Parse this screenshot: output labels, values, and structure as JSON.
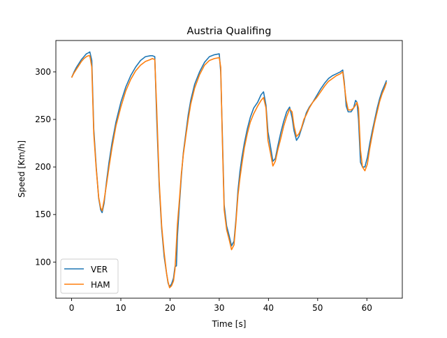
{
  "chart_data": {
    "type": "line",
    "title": "Austria Qualifing",
    "xlabel": "Time [s]",
    "ylabel": "Speed [Km/h]",
    "xlim": [
      -3.2,
      67.2
    ],
    "ylim": [
      62,
      333
    ],
    "xticks": [
      0,
      10,
      20,
      30,
      40,
      50,
      60
    ],
    "yticks": [
      100,
      150,
      200,
      250,
      300
    ],
    "legend_position": "lower-left",
    "series": [
      {
        "name": "VER",
        "color": "#1f77b4",
        "x": [
          0,
          0.5,
          1,
          1.5,
          2,
          2.5,
          3,
          3.4,
          3.7,
          4.1,
          4.5,
          5,
          5.5,
          5.9,
          6.2,
          6.6,
          7.1,
          7.6,
          8.2,
          9,
          10,
          11,
          12,
          13,
          14,
          15,
          16,
          16.4,
          16.9,
          17.3,
          17.8,
          18.3,
          18.8,
          19.3,
          19.6,
          19.9,
          20.3,
          20.7,
          21,
          21.3,
          21.5,
          21.9,
          22.3,
          22.7,
          23.2,
          23.7,
          24.2,
          25,
          26,
          27,
          28,
          29,
          30,
          30.3,
          30.6,
          31,
          31.5,
          32,
          32.5,
          33,
          33.4,
          33.8,
          34.2,
          34.6,
          35.1,
          35.7,
          36.3,
          37,
          37.8,
          38.5,
          39,
          39.5,
          39.9,
          40.4,
          40.9,
          41.4,
          41.9,
          42.5,
          43.1,
          43.7,
          44.3,
          44.8,
          45.2,
          45.7,
          46.2,
          46.7,
          47.2,
          47.7,
          48.3,
          49,
          49.8,
          50.6,
          51.4,
          52.2,
          53,
          53.8,
          54.6,
          55.1,
          55.4,
          55.8,
          56.2,
          56.8,
          57.3,
          57.7,
          58,
          58.3,
          58.7,
          59.1,
          59.6,
          60.1,
          60.6,
          61.1,
          61.6,
          62.1,
          62.6,
          63.1,
          63.6,
          64
        ],
        "y": [
          294,
          300,
          305,
          309,
          313,
          316,
          319,
          320,
          321,
          312,
          240,
          200,
          167,
          155,
          152,
          162,
          185,
          205,
          225,
          247,
          268,
          284,
          296,
          305,
          312,
          316,
          317,
          317,
          316,
          250,
          180,
          135,
          106,
          88,
          78,
          74,
          77,
          83,
          95,
          96,
          127,
          160,
          190,
          215,
          235,
          255,
          270,
          287,
          300,
          310,
          316,
          318,
          319,
          300,
          240,
          160,
          138,
          128,
          117,
          122,
          145,
          175,
          195,
          210,
          225,
          240,
          252,
          262,
          268,
          276,
          279,
          265,
          237,
          222,
          206,
          209,
          222,
          236,
          248,
          258,
          263,
          252,
          238,
          228,
          232,
          240,
          248,
          257,
          263,
          268,
          275,
          282,
          288,
          293,
          296,
          298,
          300,
          302,
          290,
          264,
          258,
          258,
          262,
          270,
          268,
          250,
          205,
          200,
          200,
          210,
          225,
          238,
          250,
          262,
          272,
          280,
          286,
          291
        ]
      },
      {
        "name": "HAM",
        "color": "#ff7f0e",
        "x": [
          0,
          0.5,
          1,
          1.5,
          2,
          2.5,
          3,
          3.4,
          3.7,
          4.1,
          4.5,
          5,
          5.5,
          5.9,
          6.2,
          6.6,
          7.1,
          7.6,
          8.2,
          9,
          10,
          11,
          12,
          13,
          14,
          15,
          16,
          16.4,
          16.9,
          17.3,
          17.8,
          18.3,
          18.8,
          19.3,
          19.6,
          19.9,
          20.3,
          20.7,
          21,
          21.3,
          21.5,
          21.9,
          22.3,
          22.7,
          23.2,
          23.7,
          24.2,
          25,
          26,
          27,
          28,
          29,
          30,
          30.3,
          30.6,
          31,
          31.5,
          32,
          32.5,
          33,
          33.4,
          33.8,
          34.2,
          34.6,
          35.1,
          35.7,
          36.3,
          37,
          37.8,
          38.5,
          39,
          39.5,
          39.9,
          40.4,
          40.9,
          41.4,
          41.9,
          42.5,
          43.1,
          43.7,
          44.3,
          44.8,
          45.2,
          45.7,
          46.2,
          46.7,
          47.2,
          47.7,
          48.3,
          49,
          49.8,
          50.6,
          51.4,
          52.2,
          53,
          53.8,
          54.6,
          55.1,
          55.4,
          55.8,
          56.2,
          56.8,
          57.3,
          57.7,
          58,
          58.3,
          58.7,
          59.1,
          59.6,
          60.1,
          60.6,
          61.1,
          61.6,
          62.1,
          62.6,
          63.1,
          63.6,
          64
        ],
        "y": [
          294,
          299,
          303,
          307,
          311,
          314,
          316,
          317,
          317,
          305,
          235,
          198,
          168,
          157,
          154,
          165,
          182,
          200,
          220,
          243,
          263,
          280,
          292,
          301,
          307,
          311,
          313,
          314,
          313,
          260,
          185,
          138,
          110,
          88,
          79,
          73,
          75,
          80,
          92,
          120,
          140,
          165,
          193,
          213,
          232,
          250,
          266,
          283,
          297,
          307,
          312,
          314,
          315,
          305,
          235,
          155,
          134,
          124,
          113,
          118,
          142,
          170,
          188,
          203,
          220,
          235,
          247,
          256,
          264,
          270,
          273,
          262,
          228,
          215,
          201,
          206,
          218,
          230,
          243,
          253,
          261,
          258,
          243,
          232,
          235,
          241,
          250,
          255,
          262,
          268,
          273,
          279,
          285,
          290,
          293,
          296,
          298,
          300,
          287,
          270,
          260,
          260,
          262,
          265,
          268,
          262,
          218,
          200,
          196,
          203,
          220,
          234,
          247,
          258,
          269,
          277,
          283,
          289
        ]
      }
    ]
  }
}
